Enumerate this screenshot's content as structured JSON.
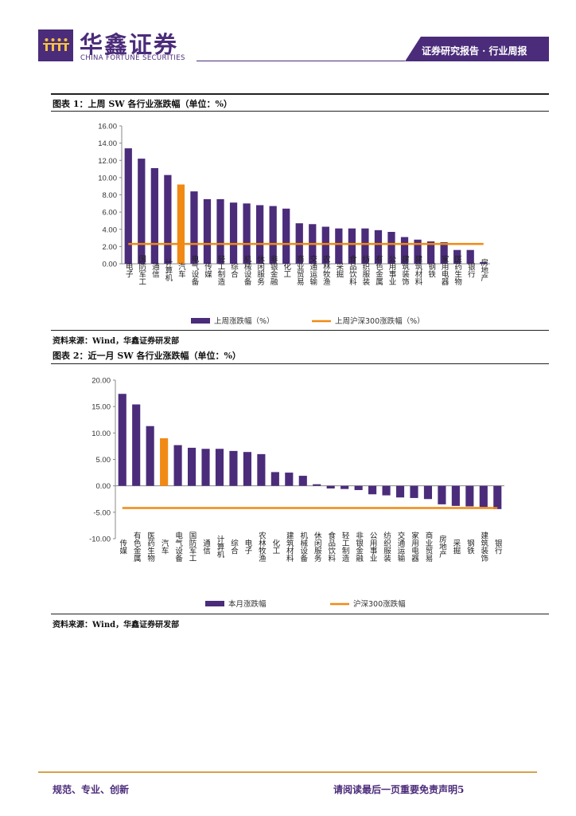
{
  "header": {
    "logo_cn": "华鑫证券",
    "logo_en": "CHINA FORTUNE SECURITIES",
    "banner": "证券研究报告 · 行业周报"
  },
  "colors": {
    "brand": "#4b2c7a",
    "bar": "#4b2c7a",
    "highlight": "#f08a14",
    "line": "#f08a14",
    "footer_rule": "#d8a24a"
  },
  "chart_data": [
    {
      "type": "bar",
      "title": "图表 1：上周 SW 各行业涨跌幅（单位：%）",
      "categories": [
        "电子",
        "国防军工",
        "通信",
        "计算机",
        "汽车",
        "电气设备",
        "传媒",
        "轻工制造",
        "综合",
        "机械设备",
        "休闲服务",
        "非银金融",
        "化工",
        "商业贸易",
        "交通运输",
        "农林牧渔",
        "采掘",
        "食品饮料",
        "纺织服装",
        "有色金属",
        "公用事业",
        "建筑装饰",
        "建筑材料",
        "钢铁",
        "家用电器",
        "医药生物",
        "银行",
        "房地产"
      ],
      "values": [
        13.4,
        12.2,
        11.1,
        10.3,
        9.2,
        8.4,
        7.5,
        7.5,
        7.1,
        7.0,
        6.8,
        6.7,
        6.4,
        4.7,
        4.6,
        4.3,
        4.1,
        4.1,
        4.1,
        3.9,
        3.7,
        3.1,
        2.8,
        2.6,
        2.5,
        1.6,
        1.6,
        0.2
      ],
      "highlight_category": "汽车",
      "series": [
        {
          "name": "上周涨跌幅（%）",
          "type": "bar"
        },
        {
          "name": "上周沪深300涨跌幅（%）",
          "type": "line",
          "value": 2.3
        }
      ],
      "yticks": [
        "16.00",
        "14.00",
        "12.00",
        "10.00",
        "8.00",
        "6.00",
        "4.00",
        "2.00",
        "0.00"
      ],
      "ylim": [
        0,
        16
      ],
      "source": "资料来源：Wind，华鑫证券研发部"
    },
    {
      "type": "bar",
      "title": "图表 2：近一月 SW 各行业涨跌幅（单位：%）",
      "categories": [
        "传媒",
        "有色金属",
        "医药生物",
        "汽车",
        "电气设备",
        "国防军工",
        "通信",
        "计算机",
        "综合",
        "电子",
        "农林牧渔",
        "化工",
        "建筑材料",
        "机械设备",
        "休闲服务",
        "食品饮料",
        "轻工制造",
        "非银金融",
        "公用事业",
        "纺织服装",
        "交通运输",
        "家用电器",
        "商业贸易",
        "房地产",
        "采掘",
        "钢铁",
        "建筑装饰",
        "银行"
      ],
      "values": [
        17.4,
        15.4,
        11.3,
        9.0,
        7.7,
        7.2,
        7.0,
        7.0,
        6.6,
        6.4,
        6.0,
        2.6,
        2.5,
        1.9,
        0.3,
        -0.5,
        -0.6,
        -0.8,
        -1.6,
        -1.8,
        -2.2,
        -2.3,
        -2.5,
        -3.5,
        -3.8,
        -3.9,
        -4.0,
        -4.4
      ],
      "highlight_category": "汽车",
      "series": [
        {
          "name": "本月涨跌幅",
          "type": "bar"
        },
        {
          "name": "沪深300涨跌幅",
          "type": "line",
          "value": -4.2
        }
      ],
      "yticks": [
        "20.00",
        "15.00",
        "10.00",
        "5.00",
        "0.00",
        "-5.00",
        "-10.00"
      ],
      "ylim": [
        -10,
        20
      ],
      "source": "资料来源：Wind，华鑫证券研发部"
    }
  ],
  "footer": {
    "left": "规范、专业、创新",
    "right": "请阅读最后一页重要免责声明5"
  }
}
